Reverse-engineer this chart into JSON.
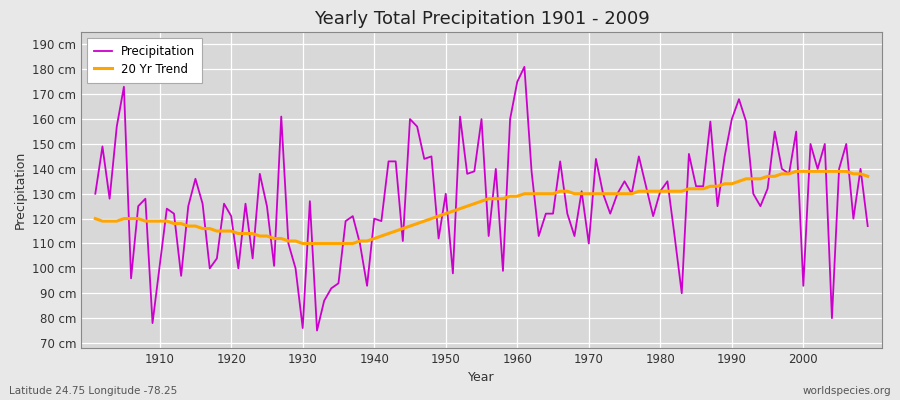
{
  "title": "Yearly Total Precipitation 1901 - 2009",
  "xlabel": "Year",
  "ylabel": "Precipitation",
  "bottom_left_label": "Latitude 24.75 Longitude -78.25",
  "bottom_right_label": "worldspecies.org",
  "precip_color": "#CC00CC",
  "trend_color": "#FFA500",
  "bg_color": "#E8E8E8",
  "plot_bg_color": "#D8D8D8",
  "ylim": [
    68,
    195
  ],
  "years": [
    1901,
    1902,
    1903,
    1904,
    1905,
    1906,
    1907,
    1908,
    1909,
    1910,
    1911,
    1912,
    1913,
    1914,
    1915,
    1916,
    1917,
    1918,
    1919,
    1920,
    1921,
    1922,
    1923,
    1924,
    1925,
    1926,
    1927,
    1928,
    1929,
    1930,
    1931,
    1932,
    1933,
    1934,
    1935,
    1936,
    1937,
    1938,
    1939,
    1940,
    1941,
    1942,
    1943,
    1944,
    1945,
    1946,
    1947,
    1948,
    1949,
    1950,
    1951,
    1952,
    1953,
    1954,
    1955,
    1956,
    1957,
    1958,
    1959,
    1960,
    1961,
    1962,
    1963,
    1964,
    1965,
    1966,
    1967,
    1968,
    1969,
    1970,
    1971,
    1972,
    1973,
    1974,
    1975,
    1976,
    1977,
    1978,
    1979,
    1980,
    1981,
    1982,
    1983,
    1984,
    1985,
    1986,
    1987,
    1988,
    1989,
    1990,
    1991,
    1992,
    1993,
    1994,
    1995,
    1996,
    1997,
    1998,
    1999,
    2000,
    2001,
    2002,
    2003,
    2004,
    2005,
    2006,
    2007,
    2008,
    2009
  ],
  "precip": [
    130,
    149,
    128,
    157,
    173,
    96,
    125,
    128,
    78,
    101,
    124,
    122,
    97,
    125,
    136,
    126,
    100,
    104,
    126,
    121,
    100,
    126,
    104,
    138,
    125,
    101,
    161,
    110,
    100,
    76,
    127,
    75,
    87,
    92,
    94,
    119,
    121,
    110,
    93,
    120,
    119,
    143,
    143,
    111,
    160,
    157,
    144,
    145,
    112,
    130,
    98,
    161,
    138,
    139,
    160,
    113,
    140,
    99,
    160,
    175,
    181,
    139,
    113,
    122,
    122,
    143,
    122,
    113,
    131,
    110,
    144,
    130,
    122,
    130,
    135,
    130,
    145,
    133,
    121,
    131,
    135,
    113,
    90,
    146,
    133,
    133,
    159,
    125,
    145,
    160,
    168,
    159,
    130,
    125,
    132,
    155,
    140,
    138,
    155,
    93,
    150,
    140,
    150,
    80,
    140,
    150,
    120,
    140,
    117
  ],
  "trend": [
    120,
    119,
    119,
    119,
    120,
    120,
    120,
    119,
    119,
    119,
    119,
    118,
    118,
    117,
    117,
    116,
    116,
    115,
    115,
    115,
    114,
    114,
    114,
    113,
    113,
    112,
    112,
    111,
    111,
    110,
    110,
    110,
    110,
    110,
    110,
    110,
    110,
    111,
    111,
    112,
    113,
    114,
    115,
    116,
    117,
    118,
    119,
    120,
    121,
    122,
    123,
    124,
    125,
    126,
    127,
    128,
    128,
    128,
    129,
    129,
    130,
    130,
    130,
    130,
    130,
    131,
    131,
    130,
    130,
    130,
    130,
    130,
    130,
    130,
    130,
    130,
    131,
    131,
    131,
    131,
    131,
    131,
    131,
    132,
    132,
    132,
    133,
    133,
    134,
    134,
    135,
    136,
    136,
    136,
    137,
    137,
    138,
    138,
    139,
    139,
    139,
    139,
    139,
    139,
    139,
    139,
    138,
    138,
    137
  ]
}
